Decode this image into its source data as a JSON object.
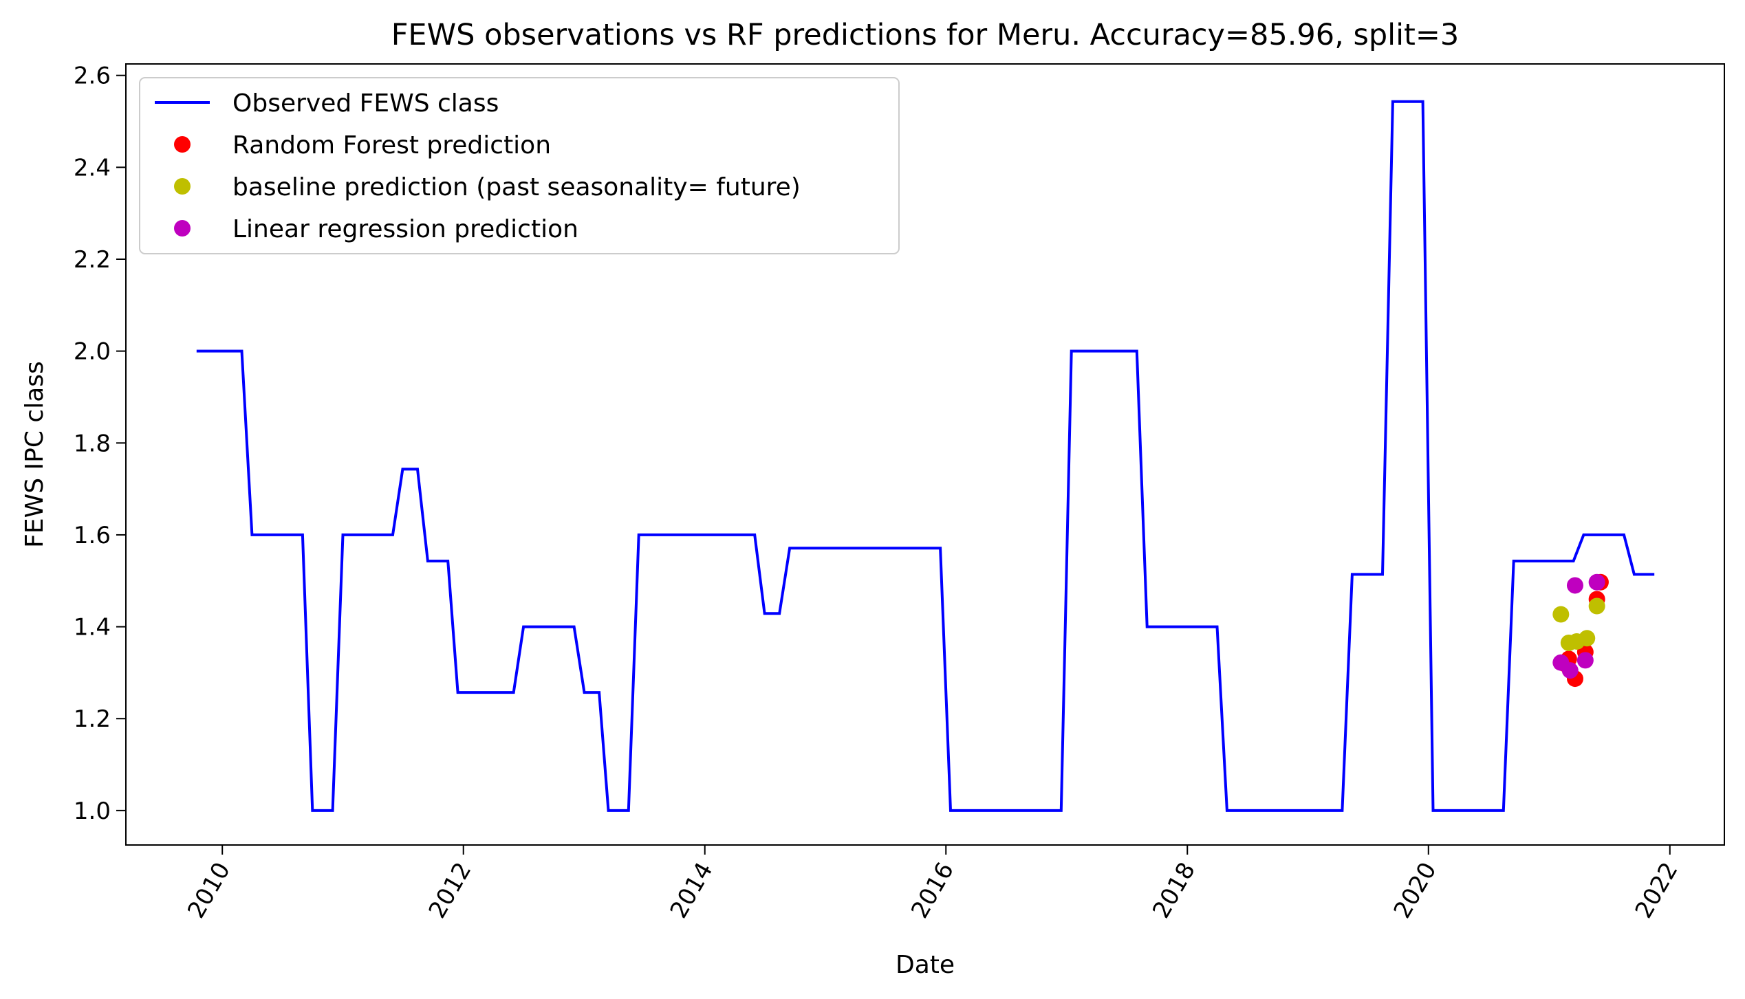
{
  "chart_data": {
    "type": "line",
    "title": "FEWS observations vs RF predictions for Meru. Accuracy=85.96, split=3",
    "xlabel": "Date",
    "ylabel": "FEWS IPC class",
    "xlim": [
      "2009-03-15",
      "2022-06-15"
    ],
    "ylim": [
      0.925,
      2.625
    ],
    "x_ticks": [
      "2010",
      "2012",
      "2014",
      "2016",
      "2018",
      "2020",
      "2022"
    ],
    "y_ticks": [
      "1.0",
      "1.2",
      "1.4",
      "1.6",
      "1.8",
      "2.0",
      "2.2",
      "2.4",
      "2.6"
    ],
    "grid": false,
    "legend_position": "upper-left",
    "series": [
      {
        "name": "Observed FEWS class",
        "kind": "line",
        "color": "#0000ff",
        "points": [
          [
            "2009-10-15",
            2.0
          ],
          [
            "2010-03-01",
            2.0
          ],
          [
            "2010-04-01",
            1.6
          ],
          [
            "2010-09-01",
            1.6
          ],
          [
            "2010-10-01",
            1.0
          ],
          [
            "2010-12-01",
            1.0
          ],
          [
            "2011-01-01",
            1.6
          ],
          [
            "2011-06-01",
            1.6
          ],
          [
            "2011-07-01",
            1.743
          ],
          [
            "2011-08-15",
            1.743
          ],
          [
            "2011-09-15",
            1.543
          ],
          [
            "2011-11-15",
            1.543
          ],
          [
            "2011-12-15",
            1.257
          ],
          [
            "2012-06-01",
            1.257
          ],
          [
            "2012-07-01",
            1.4
          ],
          [
            "2012-12-01",
            1.4
          ],
          [
            "2013-01-01",
            1.257
          ],
          [
            "2013-02-15",
            1.257
          ],
          [
            "2013-03-15",
            1.0
          ],
          [
            "2013-05-15",
            1.0
          ],
          [
            "2013-06-15",
            1.6
          ],
          [
            "2014-06-01",
            1.6
          ],
          [
            "2014-07-01",
            1.429
          ],
          [
            "2014-08-15",
            1.429
          ],
          [
            "2014-09-15",
            1.571
          ],
          [
            "2015-12-15",
            1.571
          ],
          [
            "2016-01-15",
            1.0
          ],
          [
            "2016-12-15",
            1.0
          ],
          [
            "2017-01-15",
            2.0
          ],
          [
            "2017-08-01",
            2.0
          ],
          [
            "2017-09-01",
            1.4
          ],
          [
            "2018-04-01",
            1.4
          ],
          [
            "2018-05-01",
            1.0
          ],
          [
            "2019-04-15",
            1.0
          ],
          [
            "2019-05-15",
            1.514
          ],
          [
            "2019-08-15",
            1.514
          ],
          [
            "2019-09-15",
            2.543
          ],
          [
            "2019-12-15",
            2.543
          ],
          [
            "2020-01-15",
            1.0
          ],
          [
            "2020-08-15",
            1.0
          ],
          [
            "2020-09-15",
            1.543
          ],
          [
            "2021-03-15",
            1.543
          ],
          [
            "2021-04-15",
            1.6
          ],
          [
            "2021-08-15",
            1.6
          ],
          [
            "2021-09-15",
            1.514
          ],
          [
            "2021-11-15",
            1.514
          ]
        ]
      },
      {
        "name": "Random Forest prediction",
        "kind": "scatter",
        "color": "#ff0000",
        "points": [
          [
            "2021-02-15",
            1.32
          ],
          [
            "2021-03-01",
            1.33
          ],
          [
            "2021-03-20",
            1.287
          ],
          [
            "2021-04-20",
            1.345
          ],
          [
            "2021-05-25",
            1.46
          ],
          [
            "2021-06-05",
            1.497
          ]
        ]
      },
      {
        "name": "baseline prediction (past seasonality= future)",
        "kind": "scatter",
        "color": "#bfbf00",
        "points": [
          [
            "2021-02-05",
            1.427
          ],
          [
            "2021-03-01",
            1.365
          ],
          [
            "2021-03-25",
            1.368
          ],
          [
            "2021-04-25",
            1.375
          ],
          [
            "2021-05-25",
            1.445
          ]
        ]
      },
      {
        "name": "Linear regression prediction",
        "kind": "scatter",
        "color": "#bf00bf",
        "points": [
          [
            "2021-02-05",
            1.322
          ],
          [
            "2021-03-05",
            1.305
          ],
          [
            "2021-03-20",
            1.49
          ],
          [
            "2021-04-20",
            1.327
          ],
          [
            "2021-05-25",
            1.497
          ]
        ]
      }
    ]
  }
}
